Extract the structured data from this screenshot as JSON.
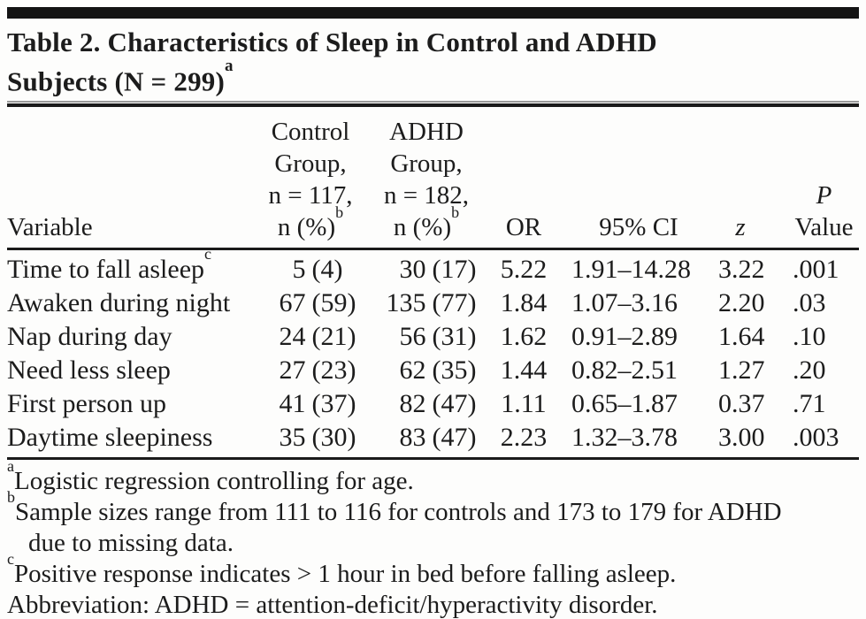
{
  "title": {
    "line1": "Table 2. Characteristics of Sleep in Control and ADHD",
    "line2": "Subjects (N = 299)",
    "sup": "a"
  },
  "columns": {
    "variable": "Variable",
    "control": {
      "l1": "Control",
      "l2": "Group,",
      "l3": "n = 117,",
      "l4": "n (%)",
      "sup": "b"
    },
    "adhd": {
      "l1": "ADHD",
      "l2": "Group,",
      "l3": "n = 182,",
      "l4": "n (%)",
      "sup": "b"
    },
    "or": "OR",
    "ci": "95% CI",
    "z": "z",
    "p_line1": "P",
    "p_line2": "Value"
  },
  "rows": [
    {
      "variable": "Time to fall asleep",
      "variable_sup": "c",
      "control_n": "5",
      "control_pct": "(4)",
      "adhd_n": "30",
      "adhd_pct": "(17)",
      "or": "5.22",
      "ci": "1.91–14.28",
      "z": "3.22",
      "p": ".001"
    },
    {
      "variable": "Awaken during night",
      "control_n": "67",
      "control_pct": "(59)",
      "adhd_n": "135",
      "adhd_pct": "(77)",
      "or": "1.84",
      "ci": "1.07–3.16",
      "z": "2.20",
      "p": ".03"
    },
    {
      "variable": "Nap during day",
      "control_n": "24",
      "control_pct": "(21)",
      "adhd_n": "56",
      "adhd_pct": "(31)",
      "or": "1.62",
      "ci": "0.91–2.89",
      "z": "1.64",
      "p": ".10"
    },
    {
      "variable": "Need less sleep",
      "control_n": "27",
      "control_pct": "(23)",
      "adhd_n": "62",
      "adhd_pct": "(35)",
      "or": "1.44",
      "ci": "0.82–2.51",
      "z": "1.27",
      "p": ".20"
    },
    {
      "variable": "First person up",
      "control_n": "41",
      "control_pct": "(37)",
      "adhd_n": "82",
      "adhd_pct": "(47)",
      "or": "1.11",
      "ci": "0.65–1.87",
      "z": "0.37",
      "p": ".71"
    },
    {
      "variable": "Daytime sleepiness",
      "control_n": "35",
      "control_pct": "(30)",
      "adhd_n": "83",
      "adhd_pct": "(47)",
      "or": "2.23",
      "ci": "1.32–3.78",
      "z": "3.00",
      "p": ".003"
    }
  ],
  "footnotes": [
    {
      "sup": "a",
      "text": "Logistic regression controlling for age."
    },
    {
      "sup": "b",
      "text": "Sample sizes range from 111 to 116 for controls and 173 to 179 for ADHD due to missing data."
    },
    {
      "sup": "c",
      "text": "Positive response indicates > 1 hour in bed before falling asleep."
    },
    {
      "sup": "",
      "text": "Abbreviation: ADHD = attention-deficit/hyperactivity disorder."
    }
  ]
}
